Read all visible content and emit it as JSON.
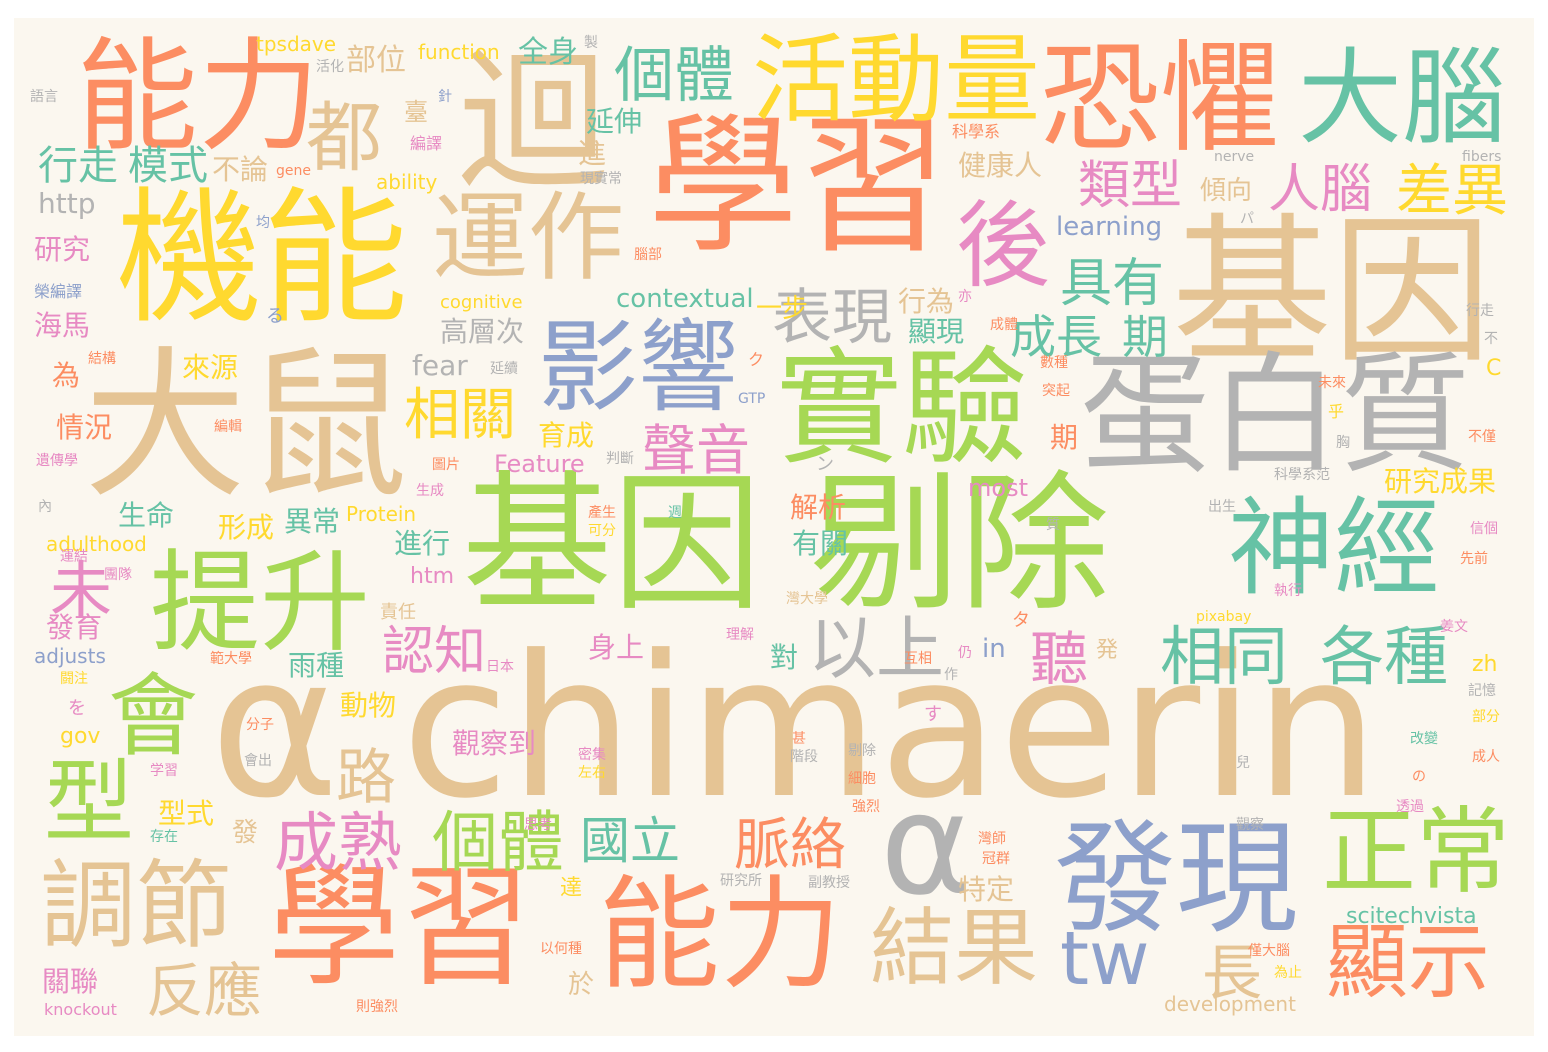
{
  "colors": {
    "background": "#fbf7ef",
    "palette": {
      "green": "#a6d854",
      "orange": "#fc8d62",
      "tan": "#e5c494",
      "teal": "#66c2a5",
      "blue": "#8da0cb",
      "yellow": "#ffd92f",
      "pink": "#e78ac3",
      "gray": "#b3b3b3"
    }
  },
  "words": [
    {
      "text": "α chimaerin",
      "color": "tan"
    },
    {
      "text": "基因 剔除",
      "color": "green"
    },
    {
      "text": "大鼠",
      "color": "tan"
    },
    {
      "text": "學習",
      "color": "orange"
    },
    {
      "text": "基因",
      "color": "tan"
    },
    {
      "text": "機能",
      "color": "yellow"
    },
    {
      "text": "蛋白質",
      "color": "gray"
    },
    {
      "text": "實驗",
      "color": "green"
    },
    {
      "text": "學習",
      "color": "orange"
    },
    {
      "text": "能力",
      "color": "orange"
    },
    {
      "text": "發現",
      "color": "blue"
    },
    {
      "text": "恐懼",
      "color": "orange"
    },
    {
      "text": "能力",
      "color": "orange"
    },
    {
      "text": "迴",
      "color": "tan"
    },
    {
      "text": "提升",
      "color": "green"
    },
    {
      "text": "神經",
      "color": "teal"
    },
    {
      "text": "大腦",
      "color": "teal"
    },
    {
      "text": "影響",
      "color": "blue"
    },
    {
      "text": "α",
      "color": "gray"
    },
    {
      "text": "活動量",
      "color": "yellow"
    },
    {
      "text": "後",
      "color": "pink"
    },
    {
      "text": "運作",
      "color": "tan"
    },
    {
      "text": "調節",
      "color": "tan"
    },
    {
      "text": "正常",
      "color": "green"
    },
    {
      "text": "會",
      "color": "green"
    },
    {
      "text": "型",
      "color": "green"
    },
    {
      "text": "結果",
      "color": "tan"
    },
    {
      "text": "顯示",
      "color": "orange"
    },
    {
      "text": "都",
      "color": "tan"
    },
    {
      "text": "tw",
      "color": "blue"
    },
    {
      "text": "相同",
      "color": "teal"
    },
    {
      "text": "各種",
      "color": "teal"
    },
    {
      "text": "以上",
      "color": "gray"
    },
    {
      "text": "個體",
      "color": "green"
    },
    {
      "text": "個體",
      "color": "teal"
    },
    {
      "text": "成熟",
      "color": "pink"
    },
    {
      "text": "表現",
      "color": "gray"
    },
    {
      "text": "差異",
      "color": "yellow"
    },
    {
      "text": "人腦",
      "color": "pink"
    },
    {
      "text": "類型",
      "color": "pink"
    },
    {
      "text": "具有",
      "color": "teal"
    },
    {
      "text": "成長",
      "color": "teal"
    },
    {
      "text": "期",
      "color": "teal"
    },
    {
      "text": "相關",
      "color": "yellow"
    },
    {
      "text": "聲音",
      "color": "pink"
    },
    {
      "text": "脈絡",
      "color": "orange"
    },
    {
      "text": "國立",
      "color": "teal"
    },
    {
      "text": "反應",
      "color": "tan"
    },
    {
      "text": "路",
      "color": "tan"
    },
    {
      "text": "未",
      "color": "pink"
    },
    {
      "text": "認知",
      "color": "pink"
    },
    {
      "text": "長",
      "color": "tan"
    },
    {
      "text": "聽",
      "color": "pink"
    },
    {
      "text": "模式",
      "color": "teal"
    },
    {
      "text": "行走",
      "color": "teal"
    },
    {
      "text": "部位",
      "color": "tan"
    },
    {
      "text": "全身",
      "color": "teal"
    },
    {
      "text": "延伸",
      "color": "teal"
    },
    {
      "text": "進",
      "color": "tan"
    },
    {
      "text": "不論",
      "color": "tan"
    },
    {
      "text": "健康人",
      "color": "tan"
    },
    {
      "text": "傾向",
      "color": "tan"
    },
    {
      "text": "行為",
      "color": "tan"
    },
    {
      "text": "顯現",
      "color": "teal"
    },
    {
      "text": "高層次",
      "color": "gray"
    },
    {
      "text": "一步",
      "color": "yellow"
    },
    {
      "text": "研究",
      "color": "pink"
    },
    {
      "text": "海馬",
      "color": "pink"
    },
    {
      "text": "來源",
      "color": "yellow"
    },
    {
      "text": "為",
      "color": "orange"
    },
    {
      "text": "情況",
      "color": "orange"
    },
    {
      "text": "育成",
      "color": "yellow"
    },
    {
      "text": "生命",
      "color": "teal"
    },
    {
      "text": "形成",
      "color": "yellow"
    },
    {
      "text": "異常",
      "color": "teal"
    },
    {
      "text": "進行",
      "color": "teal"
    },
    {
      "text": "解析",
      "color": "orange"
    },
    {
      "text": "有關",
      "color": "teal"
    },
    {
      "text": "雨種",
      "color": "teal"
    },
    {
      "text": "發育",
      "color": "pink"
    },
    {
      "text": "動物",
      "color": "yellow"
    },
    {
      "text": "觀察到",
      "color": "pink"
    },
    {
      "text": "身上",
      "color": "pink"
    },
    {
      "text": "對",
      "color": "teal"
    },
    {
      "text": "型式",
      "color": "yellow"
    },
    {
      "text": "特定",
      "color": "tan"
    },
    {
      "text": "研究成果",
      "color": "yellow"
    },
    {
      "text": "期",
      "color": "orange"
    },
    {
      "text": "發",
      "color": "tan"
    },
    {
      "text": "於",
      "color": "tan"
    },
    {
      "text": "關聯",
      "color": "pink"
    },
    {
      "text": "責任",
      "color": "tan"
    },
    {
      "text": "contextual",
      "color": "teal"
    },
    {
      "text": "learning",
      "color": "blue"
    },
    {
      "text": "fear",
      "color": "gray"
    },
    {
      "text": "http",
      "color": "gray"
    },
    {
      "text": "Feature",
      "color": "pink"
    },
    {
      "text": "most",
      "color": "pink"
    },
    {
      "text": "in",
      "color": "blue"
    },
    {
      "text": "htm",
      "color": "pink"
    },
    {
      "text": "zh",
      "color": "yellow"
    },
    {
      "text": "gov",
      "color": "yellow"
    },
    {
      "text": "scitechvista",
      "color": "teal"
    },
    {
      "text": "development",
      "color": "tan"
    },
    {
      "text": "adulthood",
      "color": "yellow"
    },
    {
      "text": "adjusts",
      "color": "blue"
    },
    {
      "text": "knockout",
      "color": "pink"
    },
    {
      "text": "Protein",
      "color": "yellow"
    },
    {
      "text": "ability",
      "color": "yellow"
    },
    {
      "text": "cognitive",
      "color": "yellow"
    },
    {
      "text": "function",
      "color": "yellow"
    },
    {
      "text": "tpsdave",
      "color": "yellow"
    },
    {
      "text": "GTP",
      "color": "blue"
    },
    {
      "text": "nerve",
      "color": "gray"
    },
    {
      "text": "fibers",
      "color": "gray"
    },
    {
      "text": "gene",
      "color": "orange"
    },
    {
      "text": "pixabay",
      "color": "yellow"
    },
    {
      "text": "C",
      "color": "yellow"
    },
    {
      "text": "語言",
      "color": "gray"
    },
    {
      "text": "活化",
      "color": "gray"
    },
    {
      "text": "臺",
      "color": "tan"
    },
    {
      "text": "製",
      "color": "gray"
    },
    {
      "text": "針",
      "color": "blue"
    },
    {
      "text": "編譯",
      "color": "pink"
    },
    {
      "text": "科學系",
      "color": "orange"
    },
    {
      "text": "現實常",
      "color": "gray"
    },
    {
      "text": "均",
      "color": "blue"
    },
    {
      "text": "榮編譯",
      "color": "blue"
    },
    {
      "text": "腦部",
      "color": "orange"
    },
    {
      "text": "る",
      "color": "blue"
    },
    {
      "text": "亦",
      "color": "pink"
    },
    {
      "text": "成體",
      "color": "orange"
    },
    {
      "text": "結構",
      "color": "orange"
    },
    {
      "text": "ク",
      "color": "orange"
    },
    {
      "text": "數種",
      "color": "orange"
    },
    {
      "text": "延續",
      "color": "gray"
    },
    {
      "text": "突起",
      "color": "orange"
    },
    {
      "text": "未來",
      "color": "orange"
    },
    {
      "text": "乎",
      "color": "yellow"
    },
    {
      "text": "編輯",
      "color": "orange"
    },
    {
      "text": "遺傳學",
      "color": "pink"
    },
    {
      "text": "判斷",
      "color": "gray"
    },
    {
      "text": "ン",
      "color": "gray"
    },
    {
      "text": "不僅",
      "color": "orange"
    },
    {
      "text": "圖片",
      "color": "orange"
    },
    {
      "text": "生成",
      "color": "pink"
    },
    {
      "text": "內",
      "color": "gray"
    },
    {
      "text": "產生",
      "color": "orange"
    },
    {
      "text": "可分",
      "color": "yellow"
    },
    {
      "text": "週",
      "color": "teal"
    },
    {
      "text": "科學系范",
      "color": "gray"
    },
    {
      "text": "出生",
      "color": "gray"
    },
    {
      "text": "質",
      "color": "gray"
    },
    {
      "text": "信個",
      "color": "pink"
    },
    {
      "text": "先前",
      "color": "orange"
    },
    {
      "text": "運結",
      "color": "pink"
    },
    {
      "text": "團隊",
      "color": "pink"
    },
    {
      "text": "灣大學",
      "color": "tan"
    },
    {
      "text": "執行",
      "color": "pink"
    },
    {
      "text": "タ",
      "color": "orange"
    },
    {
      "text": "理解",
      "color": "pink"
    },
    {
      "text": "範大學",
      "color": "orange"
    },
    {
      "text": "仍",
      "color": "pink"
    },
    {
      "text": "姜文",
      "color": "pink"
    },
    {
      "text": "日本",
      "color": "pink"
    },
    {
      "text": "発",
      "color": "tan"
    },
    {
      "text": "互相",
      "color": "orange"
    },
    {
      "text": "作",
      "color": "gray"
    },
    {
      "text": "記憶",
      "color": "gray"
    },
    {
      "text": "闘注",
      "color": "yellow"
    },
    {
      "text": "を",
      "color": "pink"
    },
    {
      "text": "分子",
      "color": "orange"
    },
    {
      "text": "す",
      "color": "pink"
    },
    {
      "text": "部分",
      "color": "yellow"
    },
    {
      "text": "学習",
      "color": "pink"
    },
    {
      "text": "會出",
      "color": "gray"
    },
    {
      "text": "密集",
      "color": "pink"
    },
    {
      "text": "左右",
      "color": "yellow"
    },
    {
      "text": "階段",
      "color": "gray"
    },
    {
      "text": "甚",
      "color": "orange"
    },
    {
      "text": "剔除",
      "color": "gray"
    },
    {
      "text": "細胞",
      "color": "orange"
    },
    {
      "text": "改變",
      "color": "teal"
    },
    {
      "text": "成人",
      "color": "orange"
    },
    {
      "text": "兒",
      "color": "gray"
    },
    {
      "text": "の",
      "color": "orange"
    },
    {
      "text": "強烈",
      "color": "orange"
    },
    {
      "text": "存在",
      "color": "teal"
    },
    {
      "text": "思考",
      "color": "pink"
    },
    {
      "text": "透過",
      "color": "pink"
    },
    {
      "text": "觀察",
      "color": "gray"
    },
    {
      "text": "灣師",
      "color": "orange"
    },
    {
      "text": "冠群",
      "color": "orange"
    },
    {
      "text": "研究所",
      "color": "gray"
    },
    {
      "text": "副教授",
      "color": "gray"
    },
    {
      "text": "達",
      "color": "yellow"
    },
    {
      "text": "以何種",
      "color": "orange"
    },
    {
      "text": "僅大腦",
      "color": "orange"
    },
    {
      "text": "為止",
      "color": "yellow"
    },
    {
      "text": "則強烈",
      "color": "orange"
    },
    {
      "text": "行走",
      "color": "gray"
    },
    {
      "text": "不",
      "color": "gray"
    },
    {
      "text": "胸",
      "color": "gray"
    },
    {
      "text": "パ",
      "color": "gray"
    }
  ]
}
